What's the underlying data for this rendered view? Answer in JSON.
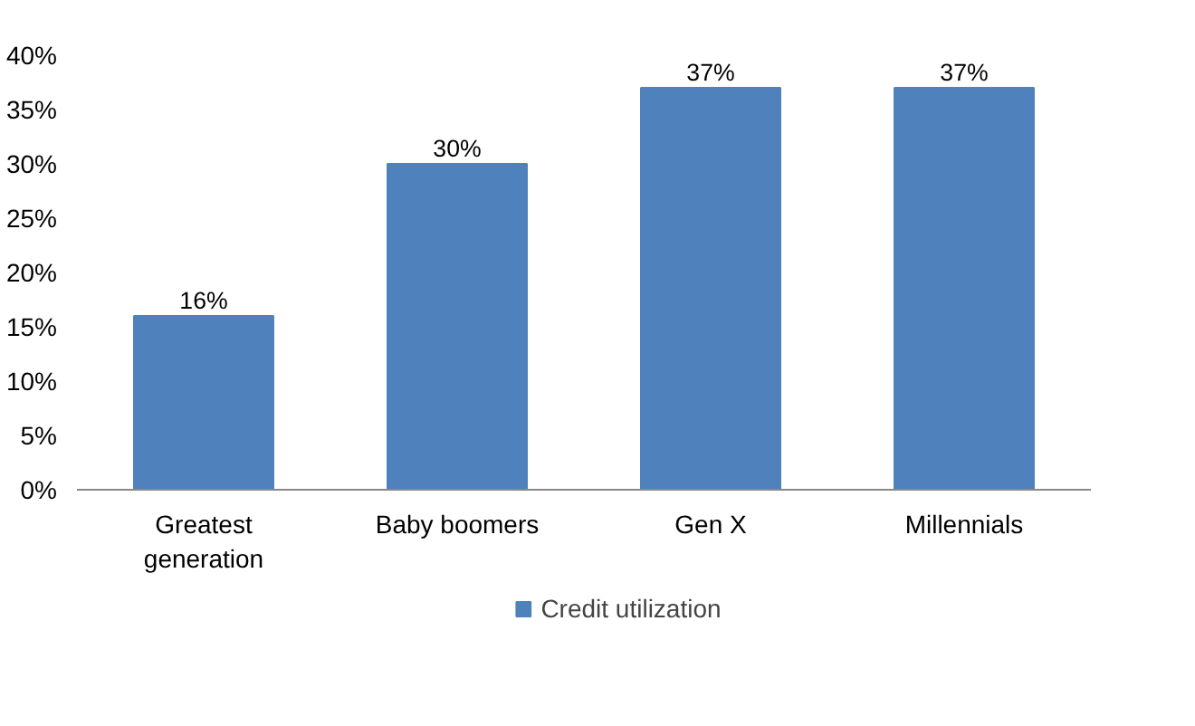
{
  "chart_data": {
    "type": "bar",
    "categories": [
      "Greatest generation",
      "Baby boomers",
      "Gen X",
      "Millennials"
    ],
    "series": [
      {
        "name": "Credit utilization",
        "color": "#4f81bd",
        "values": [
          16,
          30,
          37,
          37
        ],
        "value_labels": [
          "16%",
          "30%",
          "37%",
          "37%"
        ]
      }
    ],
    "ylim": [
      0,
      40
    ],
    "yticks": [
      {
        "value": 0,
        "label": "0%"
      },
      {
        "value": 5,
        "label": "5%"
      },
      {
        "value": 10,
        "label": "10%"
      },
      {
        "value": 15,
        "label": "15%"
      },
      {
        "value": 20,
        "label": "20%"
      },
      {
        "value": 25,
        "label": "25%"
      },
      {
        "value": 30,
        "label": "30%"
      },
      {
        "value": 35,
        "label": "35%"
      },
      {
        "value": 40,
        "label": "40%"
      }
    ],
    "legend": "bottom"
  }
}
